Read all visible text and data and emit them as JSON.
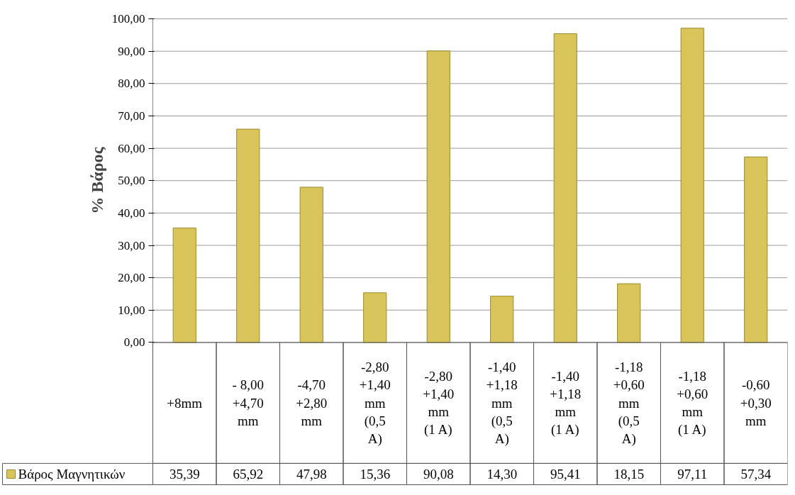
{
  "chart_data": {
    "type": "bar",
    "ylabel": "% Βάρος",
    "categories": [
      "+8mm",
      "- 8,00 +4,70 mm",
      "-4,70 +2,80 mm",
      "-2,80 +1,40 mm (0,5 A)",
      "-2,80 +1,40 mm (1 A)",
      "-1,40 +1,18 mm (0,5 A)",
      "-1,40 +1,18 mm (1 A)",
      "-1,18 +0,60 mm (0,5 A)",
      "-1,18 +0,60 mm (1 A)",
      "-0,60 +0,30 mm"
    ],
    "series": [
      {
        "name": "Βάρος Μαγνητικών",
        "color": "#d9c45a",
        "values": [
          35.39,
          65.92,
          47.98,
          15.36,
          90.08,
          14.3,
          95.41,
          18.15,
          97.11,
          57.34
        ],
        "value_labels": [
          "35,39",
          "65,92",
          "47,98",
          "15,36",
          "90,08",
          "14,30",
          "95,41",
          "18,15",
          "97,11",
          "57,34"
        ]
      }
    ],
    "ylim": [
      0,
      100
    ],
    "yticks": [
      {
        "value": 0,
        "label": "0,00"
      },
      {
        "value": 10,
        "label": "10,00"
      },
      {
        "value": 20,
        "label": "20,00"
      },
      {
        "value": 30,
        "label": "30,00"
      },
      {
        "value": 40,
        "label": "40,00"
      },
      {
        "value": 50,
        "label": "50,00"
      },
      {
        "value": 60,
        "label": "60,00"
      },
      {
        "value": 70,
        "label": "70,00"
      },
      {
        "value": 80,
        "label": "80,00"
      },
      {
        "value": 90,
        "label": "90,00"
      },
      {
        "value": 100,
        "label": "100,00"
      }
    ],
    "grid": "y",
    "legend": "bottom"
  }
}
